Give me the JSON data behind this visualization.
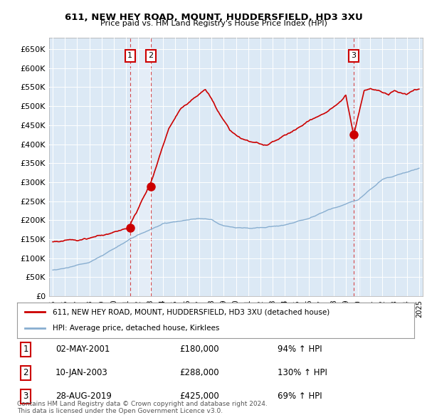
{
  "title": "611, NEW HEY ROAD, MOUNT, HUDDERSFIELD, HD3 3XU",
  "subtitle": "Price paid vs. HM Land Registry's House Price Index (HPI)",
  "ylim": [
    0,
    680000
  ],
  "yticks": [
    0,
    50000,
    100000,
    150000,
    200000,
    250000,
    300000,
    350000,
    400000,
    450000,
    500000,
    550000,
    600000,
    650000
  ],
  "xlim_min": 1994.7,
  "xlim_max": 2025.3,
  "bg_color": "#dce9f5",
  "sale_dates": [
    2001.33,
    2003.03,
    2019.65
  ],
  "sale_prices": [
    180000,
    288000,
    425000
  ],
  "sale_labels": [
    "1",
    "2",
    "3"
  ],
  "red_line_color": "#cc0000",
  "blue_line_color": "#88aed0",
  "shade_color": "#dce9f5",
  "dashed_line_color": "#cc0000",
  "legend_red_label": "611, NEW HEY ROAD, MOUNT, HUDDERSFIELD, HD3 3XU (detached house)",
  "legend_blue_label": "HPI: Average price, detached house, Kirklees",
  "table_rows": [
    {
      "num": "1",
      "date": "02-MAY-2001",
      "price": "£180,000",
      "hpi": "94% ↑ HPI"
    },
    {
      "num": "2",
      "date": "10-JAN-2003",
      "price": "£288,000",
      "hpi": "130% ↑ HPI"
    },
    {
      "num": "3",
      "date": "28-AUG-2019",
      "price": "£425,000",
      "hpi": "69% ↑ HPI"
    }
  ],
  "footer": "Contains HM Land Registry data © Crown copyright and database right 2024.\nThis data is licensed under the Open Government Licence v3.0."
}
